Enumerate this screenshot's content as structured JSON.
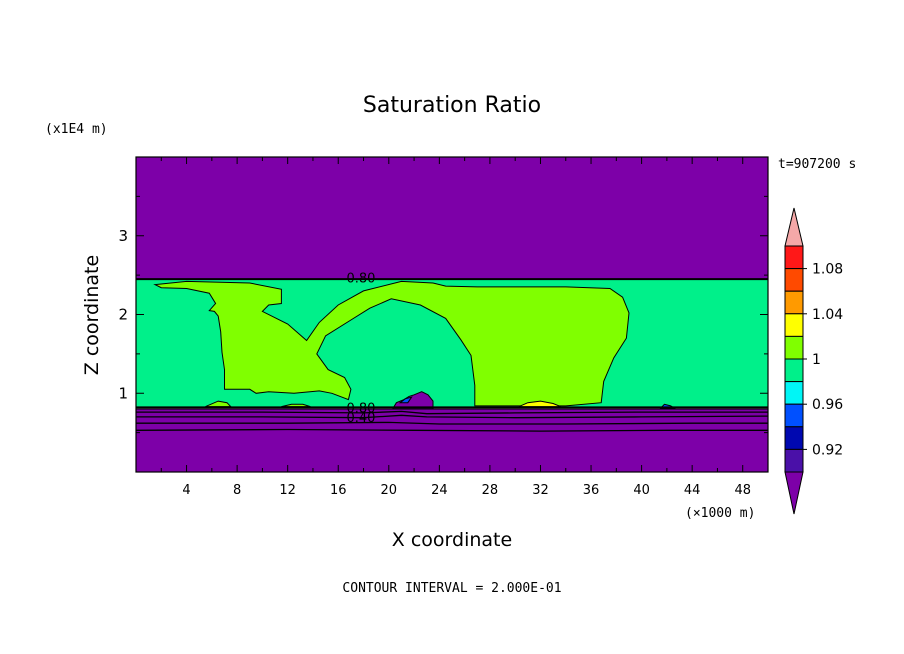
{
  "colors": {
    "purple": "#7d00a8",
    "spring_green": "#00f08a",
    "lime": "#80ff00",
    "yellow": "#ffff00",
    "orange": "#ff9a00",
    "red_orange": "#ff4a00",
    "red": "#ff1818",
    "pink": "#f5a8a8",
    "cyan": "#00f6f6",
    "blue": "#0050ff",
    "dark_blue": "#0008b0",
    "navy_purple": "#4a10a8"
  },
  "chart_data": {
    "type": "heatmap",
    "title": "Saturation Ratio",
    "xlabel": "X coordinate",
    "ylabel": "Z coordinate",
    "x_unit": "(×1000 m)",
    "y_unit": "(x1E4 m)",
    "time_label": "t=907200 s",
    "contour_interval_text": "CONTOUR INTERVAL = 2.000E-01",
    "xlim": [
      0,
      50
    ],
    "ylim": [
      0,
      4
    ],
    "x_ticks": [
      {
        "value": 4,
        "label": "4"
      },
      {
        "value": 8,
        "label": "8"
      },
      {
        "value": 12,
        "label": "12"
      },
      {
        "value": 16,
        "label": "16"
      },
      {
        "value": 20,
        "label": "20"
      },
      {
        "value": 24,
        "label": "24"
      },
      {
        "value": 28,
        "label": "28"
      },
      {
        "value": 32,
        "label": "32"
      },
      {
        "value": 36,
        "label": "36"
      },
      {
        "value": 40,
        "label": "40"
      },
      {
        "value": 44,
        "label": "44"
      },
      {
        "value": 48,
        "label": "48"
      }
    ],
    "y_ticks": [
      {
        "value": 1,
        "label": "1"
      },
      {
        "value": 2,
        "label": "2"
      },
      {
        "value": 3,
        "label": "3"
      }
    ],
    "layers": {
      "upper_dry_top": 2.45,
      "moist_bottom": 0.82,
      "lower_dry_top": 0.8
    },
    "contour_labels": [
      {
        "x": 17.8,
        "y": 2.47,
        "text": "0.80"
      },
      {
        "x": 17.8,
        "y": 0.82,
        "text": "0.80"
      },
      {
        "x": 17.8,
        "y": 0.7,
        "text": "0.40"
      }
    ],
    "colorbar": {
      "levels": [
        "0.92",
        "0.96",
        "1",
        "1.04",
        "1.08"
      ],
      "bins": [
        {
          "min": null,
          "max": 0.9,
          "color": "#7d00a8"
        },
        {
          "min": 0.9,
          "max": 0.92,
          "color": "#4a10a8"
        },
        {
          "min": 0.92,
          "max": 0.94,
          "color": "#0008b0"
        },
        {
          "min": 0.94,
          "max": 0.96,
          "color": "#0050ff"
        },
        {
          "min": 0.96,
          "max": 0.98,
          "color": "#00f6f6"
        },
        {
          "min": 0.98,
          "max": 1.0,
          "color": "#00f08a"
        },
        {
          "min": 1.0,
          "max": 1.02,
          "color": "#80ff00"
        },
        {
          "min": 1.02,
          "max": 1.04,
          "color": "#ffff00"
        },
        {
          "min": 1.04,
          "max": 1.06,
          "color": "#ff9a00"
        },
        {
          "min": 1.06,
          "max": 1.08,
          "color": "#ff4a00"
        },
        {
          "min": 1.08,
          "max": 1.1,
          "color": "#ff1818"
        },
        {
          "min": 1.1,
          "max": null,
          "color": "#f5a8a8"
        }
      ]
    },
    "regions": [
      {
        "name": "upper-dry-layer",
        "color": "#7d00a8",
        "points": [
          [
            0,
            4
          ],
          [
            50,
            4
          ],
          [
            50,
            2.45
          ],
          [
            0,
            2.45
          ]
        ]
      },
      {
        "name": "moist-layer",
        "color": "#00f08a",
        "points": [
          [
            0,
            2.45
          ],
          [
            50,
            2.45
          ],
          [
            50,
            0.82
          ],
          [
            0,
            0.82
          ]
        ]
      },
      {
        "name": "supersat-region-left",
        "color": "#80ff00",
        "points": [
          [
            1.5,
            2.38
          ],
          [
            4,
            2.42
          ],
          [
            9,
            2.4
          ],
          [
            11.5,
            2.32
          ],
          [
            11.5,
            2.14
          ],
          [
            10.5,
            2.12
          ],
          [
            10,
            2.04
          ],
          [
            12,
            1.88
          ],
          [
            13.5,
            1.67
          ],
          [
            14.5,
            1.9
          ],
          [
            16,
            2.12
          ],
          [
            18,
            2.3
          ],
          [
            21,
            2.42
          ],
          [
            23.5,
            2.4
          ],
          [
            24.5,
            2.36
          ],
          [
            27,
            2.35
          ],
          [
            30,
            2.35
          ],
          [
            34,
            2.35
          ],
          [
            37.5,
            2.33
          ],
          [
            38.5,
            2.22
          ],
          [
            39,
            2.02
          ],
          [
            38.8,
            1.7
          ],
          [
            37.8,
            1.45
          ],
          [
            37,
            1.15
          ],
          [
            36.8,
            0.88
          ],
          [
            34,
            0.84
          ],
          [
            26.8,
            0.84
          ],
          [
            26.8,
            1.1
          ],
          [
            26.5,
            1.48
          ],
          [
            25.7,
            1.68
          ],
          [
            24.5,
            1.95
          ],
          [
            22.5,
            2.12
          ],
          [
            20.2,
            2.2
          ],
          [
            18.5,
            2.08
          ],
          [
            17,
            1.93
          ],
          [
            15,
            1.73
          ],
          [
            14.3,
            1.5
          ],
          [
            15.2,
            1.3
          ],
          [
            16.5,
            1.2
          ],
          [
            17,
            1.05
          ],
          [
            16.8,
            0.92
          ],
          [
            15.5,
            1.0
          ],
          [
            14.5,
            1.03
          ],
          [
            12.5,
            1.0
          ],
          [
            10.5,
            1.02
          ],
          [
            9.5,
            1.0
          ],
          [
            9,
            1.05
          ],
          [
            7,
            1.05
          ],
          [
            7,
            1.3
          ],
          [
            6.8,
            1.52
          ],
          [
            6.7,
            1.78
          ],
          [
            6.5,
            1.98
          ],
          [
            6.2,
            2.04
          ],
          [
            5.8,
            2.05
          ],
          [
            6.3,
            2.14
          ],
          [
            5.8,
            2.27
          ],
          [
            4,
            2.33
          ],
          [
            2,
            2.34
          ],
          [
            1.5,
            2.38
          ]
        ]
      },
      {
        "name": "supersat-bump-1",
        "color": "#80ff00",
        "points": [
          [
            5.5,
            0.83
          ],
          [
            6.5,
            0.9
          ],
          [
            7.2,
            0.88
          ],
          [
            7.5,
            0.83
          ]
        ]
      },
      {
        "name": "supersat-bump-2",
        "color": "#80ff00",
        "points": [
          [
            11.5,
            0.83
          ],
          [
            12.3,
            0.86
          ],
          [
            13.2,
            0.86
          ],
          [
            13.8,
            0.83
          ]
        ]
      },
      {
        "name": "yellow-peak",
        "color": "#ffff00",
        "points": [
          [
            30.3,
            0.83
          ],
          [
            31,
            0.88
          ],
          [
            32,
            0.9
          ],
          [
            33,
            0.87
          ],
          [
            33.6,
            0.83
          ]
        ]
      },
      {
        "name": "lower-dry-layer",
        "color": "#7d00a8",
        "points": [
          [
            0,
            0.8
          ],
          [
            50,
            0.8
          ],
          [
            50,
            0
          ],
          [
            0,
            0
          ]
        ]
      },
      {
        "name": "turret-cloud",
        "color": "#7d00a8",
        "points": [
          [
            20.3,
            0.8
          ],
          [
            20.6,
            0.88
          ],
          [
            21.2,
            0.92
          ],
          [
            21.6,
            0.96
          ],
          [
            22,
            0.98
          ],
          [
            22.6,
            1.02
          ],
          [
            23.1,
            0.98
          ],
          [
            23.5,
            0.9
          ],
          [
            23.5,
            0.8
          ]
        ]
      },
      {
        "name": "blue-tip",
        "color": "#0050ff",
        "points": [
          [
            20.9,
            0.88
          ],
          [
            21.3,
            0.93
          ],
          [
            21.8,
            0.95
          ],
          [
            21.5,
            0.88
          ]
        ]
      },
      {
        "name": "blue-right",
        "color": "#0050ff",
        "points": [
          [
            41.5,
            0.81
          ],
          [
            41.8,
            0.86
          ],
          [
            42.3,
            0.84
          ],
          [
            42.6,
            0.81
          ]
        ]
      }
    ],
    "contour_lines": [
      {
        "y": 0.76,
        "points": [
          [
            0,
            0.76
          ],
          [
            10,
            0.76
          ],
          [
            18,
            0.75
          ],
          [
            21,
            0.77
          ],
          [
            23,
            0.74
          ],
          [
            30,
            0.75
          ],
          [
            40,
            0.76
          ],
          [
            50,
            0.76
          ]
        ]
      },
      {
        "y": 0.7,
        "points": [
          [
            0,
            0.7
          ],
          [
            10,
            0.7
          ],
          [
            18,
            0.69
          ],
          [
            21,
            0.72
          ],
          [
            23,
            0.7
          ],
          [
            30,
            0.69
          ],
          [
            40,
            0.7
          ],
          [
            50,
            0.71
          ]
        ]
      },
      {
        "y": 0.62,
        "points": [
          [
            0,
            0.62
          ],
          [
            12,
            0.62
          ],
          [
            20,
            0.63
          ],
          [
            24,
            0.61
          ],
          [
            34,
            0.61
          ],
          [
            44,
            0.62
          ],
          [
            50,
            0.62
          ]
        ]
      },
      {
        "y": 0.53,
        "points": [
          [
            0,
            0.53
          ],
          [
            12,
            0.54
          ],
          [
            22,
            0.53
          ],
          [
            32,
            0.52
          ],
          [
            42,
            0.53
          ],
          [
            50,
            0.53
          ]
        ]
      }
    ]
  }
}
